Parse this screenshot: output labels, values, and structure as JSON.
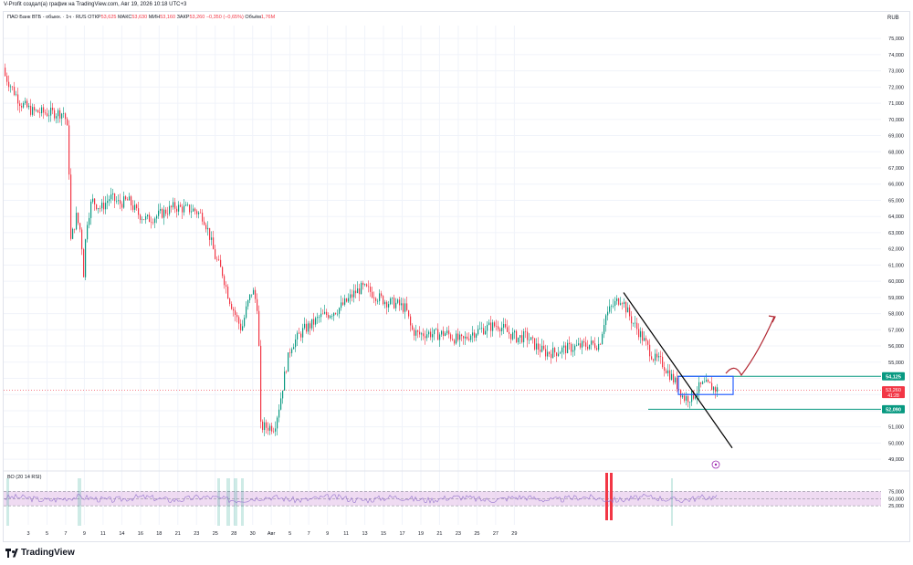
{
  "caption": "V-Profit создал(а) график на TradingView.com, Авг 19, 2026 10:18 UTC+3",
  "legend": {
    "instrument": "ПАО Банк ВТБ - обыкн. · 1ч · RUS",
    "open_label": "ОТКР",
    "open_value": "53,625",
    "high_label": "МАКС",
    "high_value": "53,630",
    "low_label": "МИН",
    "low_value": "53,160",
    "close_label": "ЗАКР",
    "close_value": "53,260",
    "change": "−0,350 (−0,65%)",
    "volume_label": "Объём",
    "volume_value": "1,76М"
  },
  "currency": "RUB",
  "rsi_label": "ВО (20 14 RSI)",
  "brand": "TradingView",
  "colors": {
    "up": "#089981",
    "down": "#f23645",
    "grid": "#f0f3fa",
    "trendline": "#000000",
    "level_line": "#089981",
    "box": "#2962ff",
    "forecast_arrow": "#b22833",
    "rsi_band": "#e1bee7",
    "rsi_line": "#9575cd"
  },
  "chart_data": {
    "type": "candlestick",
    "y_ticks": [
      "75,000",
      "74,000",
      "73,000",
      "72,000",
      "71,000",
      "70,000",
      "69,000",
      "68,000",
      "67,000",
      "66,000",
      "65,000",
      "64,000",
      "63,000",
      "62,000",
      "61,000",
      "60,000",
      "59,000",
      "58,000",
      "57,000",
      "56,000",
      "55,000",
      "54,000",
      "53,000",
      "52,000",
      "51,000",
      "50,000",
      "49,000"
    ],
    "ylim": [
      48.5,
      75.8
    ],
    "x_ticks": [
      "3",
      "5",
      "7",
      "9",
      "11",
      "14",
      "16",
      "18",
      "21",
      "23",
      "25",
      "28",
      "30",
      "Авг",
      "5",
      "7",
      "9",
      "11",
      "13",
      "15",
      "17",
      "19",
      "21",
      "23",
      "25",
      "27",
      "29"
    ],
    "price_path": [
      [
        0,
        73.2
      ],
      [
        12,
        72.0
      ],
      [
        22,
        71.0
      ],
      [
        35,
        70.5
      ],
      [
        50,
        70.4
      ],
      [
        70,
        70.4
      ],
      [
        74,
        69.0
      ],
      [
        77,
        62.5
      ],
      [
        83,
        64.0
      ],
      [
        88,
        63.0
      ],
      [
        91,
        60.5
      ],
      [
        94,
        63.5
      ],
      [
        100,
        65.0
      ],
      [
        110,
        64.5
      ],
      [
        120,
        65.2
      ],
      [
        130,
        64.8
      ],
      [
        140,
        65.0
      ],
      [
        150,
        64.2
      ],
      [
        160,
        63.8
      ],
      [
        170,
        64.0
      ],
      [
        180,
        64.3
      ],
      [
        190,
        64.6
      ],
      [
        200,
        64.5
      ],
      [
        212,
        64.4
      ],
      [
        222,
        64.0
      ],
      [
        228,
        63.0
      ],
      [
        235,
        61.5
      ],
      [
        243,
        60.5
      ],
      [
        250,
        59.0
      ],
      [
        258,
        57.8
      ],
      [
        264,
        57.0
      ],
      [
        270,
        58.5
      ],
      [
        276,
        59.5
      ],
      [
        282,
        58.3
      ],
      [
        285,
        51.0
      ],
      [
        300,
        51.0
      ],
      [
        306,
        52.5
      ],
      [
        312,
        54.5
      ],
      [
        318,
        56.0
      ],
      [
        325,
        56.5
      ],
      [
        332,
        57.0
      ],
      [
        340,
        57.3
      ],
      [
        350,
        57.8
      ],
      [
        360,
        58.0
      ],
      [
        370,
        58.3
      ],
      [
        380,
        58.8
      ],
      [
        388,
        59.3
      ],
      [
        396,
        59.6
      ],
      [
        404,
        59.4
      ],
      [
        414,
        59.0
      ],
      [
        424,
        58.7
      ],
      [
        434,
        58.6
      ],
      [
        444,
        58.3
      ],
      [
        450,
        57.0
      ],
      [
        458,
        56.7
      ],
      [
        468,
        56.8
      ],
      [
        478,
        56.7
      ],
      [
        488,
        56.8
      ],
      [
        496,
        56.5
      ],
      [
        506,
        56.3
      ],
      [
        516,
        56.8
      ],
      [
        526,
        57.0
      ],
      [
        536,
        57.2
      ],
      [
        546,
        57.3
      ],
      [
        556,
        56.8
      ],
      [
        566,
        56.5
      ],
      [
        576,
        56.6
      ],
      [
        586,
        56.0
      ],
      [
        596,
        55.6
      ],
      [
        606,
        55.6
      ],
      [
        616,
        55.8
      ],
      [
        626,
        55.9
      ],
      [
        636,
        56.0
      ],
      [
        646,
        56.1
      ],
      [
        656,
        56.1
      ],
      [
        662,
        57.8
      ],
      [
        668,
        58.3
      ],
      [
        674,
        58.7
      ],
      [
        680,
        59.0
      ],
      [
        686,
        58.2
      ],
      [
        692,
        57.5
      ],
      [
        700,
        56.8
      ],
      [
        708,
        56.0
      ],
      [
        716,
        55.2
      ],
      [
        724,
        55.0
      ],
      [
        730,
        54.5
      ],
      [
        736,
        54.0
      ],
      [
        742,
        53.5
      ],
      [
        748,
        52.8
      ],
      [
        754,
        52.8
      ],
      [
        760,
        53.0
      ],
      [
        766,
        53.5
      ],
      [
        772,
        53.6
      ],
      [
        778,
        53.5
      ],
      [
        784,
        53.3
      ]
    ],
    "levels": [
      54.125,
      52.09
    ],
    "level_labels": [
      "54,125",
      "52,090"
    ],
    "last_price": "53,260",
    "last_time": "41:28",
    "trendline": [
      [
        56,
        59.3
      ],
      [
        75,
        49.7
      ]
    ],
    "rsi": {
      "upper": 75,
      "mid": 50,
      "lower": 25,
      "ticks": [
        "75,000",
        "50,000",
        "25,000"
      ]
    }
  }
}
